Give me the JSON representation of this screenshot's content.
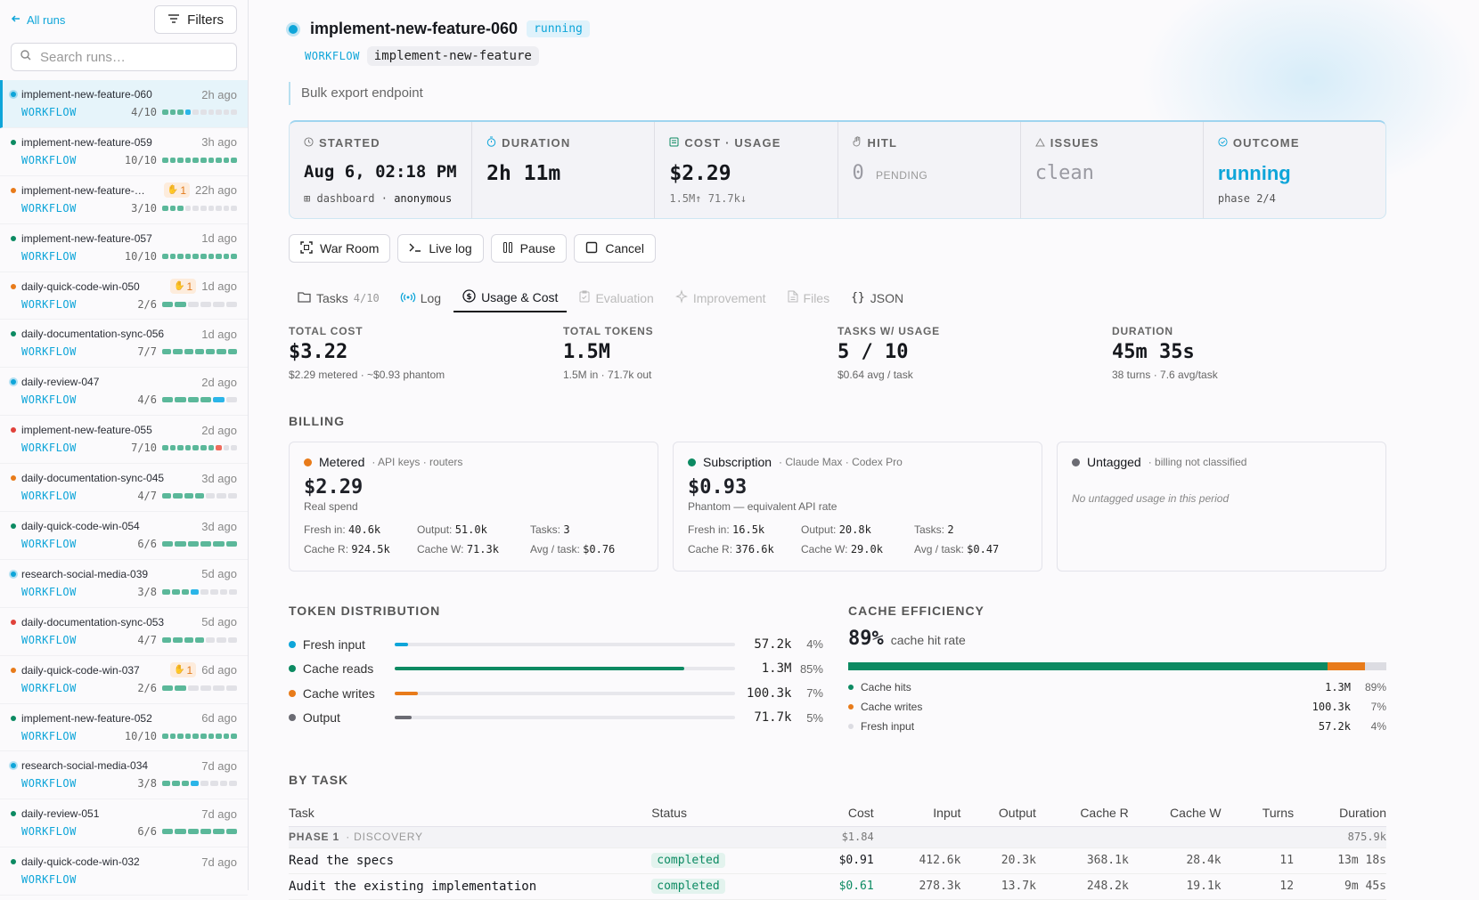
{
  "sidebar": {
    "all_runs": "All runs",
    "filters": "Filters",
    "search_placeholder": "Search runs…",
    "runs": [
      {
        "name": "implement-new-feature-060",
        "ago": "2h ago",
        "wf": "WORKFLOW",
        "count": "4/10",
        "done": 3,
        "running": 1,
        "failed": 0,
        "total": 10,
        "status": "running",
        "active": true,
        "hitl": ""
      },
      {
        "name": "implement-new-feature-059",
        "ago": "3h ago",
        "wf": "WORKFLOW",
        "count": "10/10",
        "done": 10,
        "running": 0,
        "failed": 0,
        "total": 10,
        "status": "completed",
        "active": false,
        "hitl": ""
      },
      {
        "name": "implement-new-feature-…",
        "ago": "22h ago",
        "wf": "WORKFLOW",
        "count": "3/10",
        "done": 3,
        "running": 0,
        "failed": 0,
        "total": 10,
        "status": "waiting",
        "active": false,
        "hitl": "1"
      },
      {
        "name": "implement-new-feature-057",
        "ago": "1d ago",
        "wf": "WORKFLOW",
        "count": "10/10",
        "done": 10,
        "running": 0,
        "failed": 0,
        "total": 10,
        "status": "completed",
        "active": false,
        "hitl": ""
      },
      {
        "name": "daily-quick-code-win-050",
        "ago": "1d ago",
        "wf": "WORKFLOW",
        "count": "2/6",
        "done": 2,
        "running": 0,
        "failed": 0,
        "total": 6,
        "status": "waiting",
        "active": false,
        "hitl": "1"
      },
      {
        "name": "daily-documentation-sync-056",
        "ago": "1d ago",
        "wf": "WORKFLOW",
        "count": "7/7",
        "done": 7,
        "running": 0,
        "failed": 0,
        "total": 7,
        "status": "completed",
        "active": false,
        "hitl": ""
      },
      {
        "name": "daily-review-047",
        "ago": "2d ago",
        "wf": "WORKFLOW",
        "count": "4/6",
        "done": 4,
        "running": 1,
        "failed": 0,
        "total": 6,
        "status": "running",
        "active": false,
        "hitl": ""
      },
      {
        "name": "implement-new-feature-055",
        "ago": "2d ago",
        "wf": "WORKFLOW",
        "count": "7/10",
        "done": 7,
        "running": 0,
        "failed": 1,
        "total": 10,
        "status": "failed",
        "active": false,
        "hitl": ""
      },
      {
        "name": "daily-documentation-sync-045",
        "ago": "3d ago",
        "wf": "WORKFLOW",
        "count": "4/7",
        "done": 4,
        "running": 0,
        "failed": 0,
        "total": 7,
        "status": "waiting",
        "active": false,
        "hitl": ""
      },
      {
        "name": "daily-quick-code-win-054",
        "ago": "3d ago",
        "wf": "WORKFLOW",
        "count": "6/6",
        "done": 6,
        "running": 0,
        "failed": 0,
        "total": 6,
        "status": "completed",
        "active": false,
        "hitl": ""
      },
      {
        "name": "research-social-media-039",
        "ago": "5d ago",
        "wf": "WORKFLOW",
        "count": "3/8",
        "done": 3,
        "running": 1,
        "failed": 0,
        "total": 8,
        "status": "running",
        "active": false,
        "hitl": ""
      },
      {
        "name": "daily-documentation-sync-053",
        "ago": "5d ago",
        "wf": "WORKFLOW",
        "count": "4/7",
        "done": 4,
        "running": 0,
        "failed": 0,
        "total": 7,
        "status": "failed",
        "active": false,
        "hitl": ""
      },
      {
        "name": "daily-quick-code-win-037",
        "ago": "6d ago",
        "wf": "WORKFLOW",
        "count": "2/6",
        "done": 2,
        "running": 0,
        "failed": 0,
        "total": 6,
        "status": "waiting",
        "active": false,
        "hitl": "1"
      },
      {
        "name": "implement-new-feature-052",
        "ago": "6d ago",
        "wf": "WORKFLOW",
        "count": "10/10",
        "done": 10,
        "running": 0,
        "failed": 0,
        "total": 10,
        "status": "completed",
        "active": false,
        "hitl": ""
      },
      {
        "name": "research-social-media-034",
        "ago": "7d ago",
        "wf": "WORKFLOW",
        "count": "3/8",
        "done": 3,
        "running": 1,
        "failed": 0,
        "total": 8,
        "status": "running",
        "active": false,
        "hitl": ""
      },
      {
        "name": "daily-review-051",
        "ago": "7d ago",
        "wf": "WORKFLOW",
        "count": "6/6",
        "done": 6,
        "running": 0,
        "failed": 0,
        "total": 6,
        "status": "completed",
        "active": false,
        "hitl": ""
      },
      {
        "name": "daily-quick-code-win-032",
        "ago": "7d ago",
        "wf": "WORKFLOW",
        "count": "",
        "done": 0,
        "running": 0,
        "failed": 0,
        "total": 6,
        "status": "completed",
        "active": false,
        "hitl": ""
      }
    ]
  },
  "header": {
    "title": "implement-new-feature-060",
    "status": "running",
    "workflow_key": "WORKFLOW",
    "workflow_value": "implement-new-feature",
    "description": "Bulk export endpoint"
  },
  "stats": {
    "started": {
      "label": "STARTED",
      "value": "Aug 6, 02:18 PM",
      "source": "dashboard",
      "sep": "·",
      "user": "anonymous"
    },
    "duration": {
      "label": "DURATION",
      "value": "2h 11m"
    },
    "cost": {
      "label": "COST · USAGE",
      "value": "$2.29",
      "detail": "1.5M↑ 71.7k↓"
    },
    "hitl": {
      "label": "HITL",
      "value": "0",
      "detail": "PENDING"
    },
    "issues": {
      "label": "ISSUES",
      "value": "clean"
    },
    "outcome": {
      "label": "OUTCOME",
      "value": "running",
      "detail": "phase 2/4"
    }
  },
  "actions": {
    "war_room": "War Room",
    "live_log": "Live log",
    "pause": "Pause",
    "cancel": "Cancel"
  },
  "tabs": {
    "tasks": "Tasks",
    "tasks_count": "4/10",
    "log": "Log",
    "usage": "Usage & Cost",
    "evaluation": "Evaluation",
    "improvement": "Improvement",
    "files": "Files",
    "json": "JSON"
  },
  "metrics": [
    {
      "label": "TOTAL COST",
      "value": "$3.22",
      "sub": "$2.29 metered · ~$0.93 phantom"
    },
    {
      "label": "TOTAL TOKENS",
      "value": "1.5M",
      "sub": "1.5M in · 71.7k out"
    },
    {
      "label": "TASKS W/ USAGE",
      "value": "5 / 10",
      "sub": "$0.64 avg / task"
    },
    {
      "label": "DURATION",
      "value": "45m 35s",
      "sub": "38 turns · 7.6 avg/task"
    }
  ],
  "billing": {
    "section": "BILLING",
    "metered": {
      "name": "Metered",
      "sub": "· API keys · routers",
      "amount": "$2.29",
      "note": "Real spend",
      "color": "#e87b1a",
      "fresh_in_l": "Fresh in:",
      "fresh_in": "40.6k",
      "output_l": "Output:",
      "output": "51.0k",
      "tasks_l": "Tasks:",
      "tasks": "3",
      "cache_r_l": "Cache R:",
      "cache_r": "924.5k",
      "cache_w_l": "Cache W:",
      "cache_w": "71.3k",
      "avg_l": "Avg / task:",
      "avg": "$0.76"
    },
    "subscription": {
      "name": "Subscription",
      "sub": "· Claude Max · Codex Pro",
      "amount": "$0.93",
      "note": "Phantom — equivalent API rate",
      "color": "#0c8a62",
      "fresh_in_l": "Fresh in:",
      "fresh_in": "16.5k",
      "output_l": "Output:",
      "output": "20.8k",
      "tasks_l": "Tasks:",
      "tasks": "2",
      "cache_r_l": "Cache R:",
      "cache_r": "376.6k",
      "cache_w_l": "Cache W:",
      "cache_w": "29.0k",
      "avg_l": "Avg / task:",
      "avg": "$0.47"
    },
    "untagged": {
      "name": "Untagged",
      "sub": "· billing not classified",
      "empty": "No untagged usage in this period",
      "color": "#6b6b73"
    }
  },
  "token_distribution": {
    "section": "TOKEN DISTRIBUTION",
    "rows": [
      {
        "label": "Fresh input",
        "value": "57.2k",
        "pct": "4%",
        "frac": 0.04,
        "color": "#0ea5d9"
      },
      {
        "label": "Cache reads",
        "value": "1.3M",
        "pct": "85%",
        "frac": 0.85,
        "color": "#0c8a62"
      },
      {
        "label": "Cache writes",
        "value": "100.3k",
        "pct": "7%",
        "frac": 0.07,
        "color": "#e87b1a"
      },
      {
        "label": "Output",
        "value": "71.7k",
        "pct": "5%",
        "frac": 0.05,
        "color": "#6b6b73"
      }
    ]
  },
  "cache": {
    "section": "CACHE EFFICIENCY",
    "rate": "89%",
    "rate_label": "cache hit rate",
    "rows": [
      {
        "label": "Cache hits",
        "value": "1.3M",
        "pct": "89%",
        "frac": 0.89,
        "color": "#0c8a62"
      },
      {
        "label": "Cache writes",
        "value": "100.3k",
        "pct": "7%",
        "frac": 0.07,
        "color": "#e87b1a"
      },
      {
        "label": "Fresh input",
        "value": "57.2k",
        "pct": "4%",
        "frac": 0.04,
        "color": "#dcdce2"
      }
    ]
  },
  "by_task": {
    "section": "BY TASK",
    "columns": [
      "Task",
      "Status",
      "Cost",
      "Input",
      "Output",
      "Cache R",
      "Cache W",
      "Turns",
      "Duration"
    ],
    "phase": {
      "label": "PHASE 1",
      "sub": "· DISCOVERY",
      "cost": "$1.84",
      "duration": "875.9k"
    },
    "rows": [
      {
        "task": "Read the specs",
        "status": "completed",
        "cost": "$0.91",
        "input": "412.6k",
        "output": "20.3k",
        "cache_r": "368.1k",
        "cache_w": "28.4k",
        "turns": "11",
        "duration": "13m 18s"
      },
      {
        "task": "Audit the existing implementation",
        "status": "completed",
        "cost": "$0.61",
        "input": "278.3k",
        "output": "13.7k",
        "cache_r": "248.2k",
        "cache_w": "19.1k",
        "turns": "12",
        "duration": "9m 45s"
      }
    ]
  }
}
